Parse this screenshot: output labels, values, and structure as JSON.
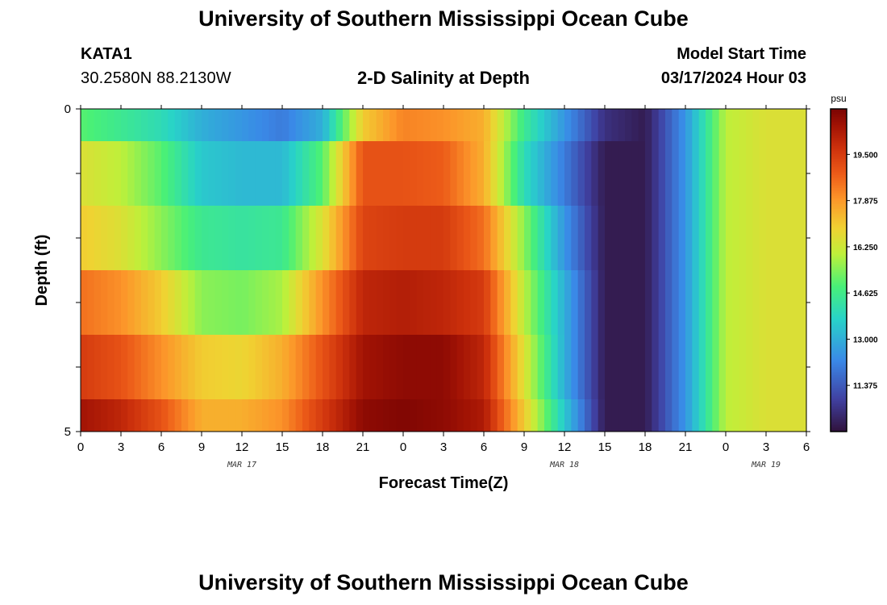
{
  "header": {
    "title": "University of Southern Mississippi Ocean Cube",
    "station": "KATA1",
    "coords": "30.2580N  88.2130W",
    "subtitle": "2-D Salinity at Depth",
    "model_label": "Model Start Time",
    "model_value": "03/17/2024 Hour 03"
  },
  "footer": {
    "title": "University of Southern Mississippi Ocean Cube"
  },
  "chart_data": {
    "type": "heatmap",
    "xlabel": "Forecast Time(Z)",
    "ylabel": "Depth (ft)",
    "x_tick_labels": [
      "0",
      "3",
      "6",
      "9",
      "12",
      "15",
      "18",
      "21",
      "0",
      "3",
      "6",
      "9",
      "12",
      "15",
      "18",
      "21",
      "0",
      "3",
      "6"
    ],
    "x_range_hours": [
      0,
      54
    ],
    "date_labels": [
      {
        "label": "MAR 17",
        "hour": 12
      },
      {
        "label": "MAR 18",
        "hour": 36
      },
      {
        "label": "MAR 19",
        "hour": 51
      }
    ],
    "y_tick_labels": [
      "0",
      "5"
    ],
    "ylim": [
      0,
      5
    ],
    "colorbar": {
      "unit": "psu",
      "tick_labels": [
        "19.500",
        "17.875",
        "16.250",
        "14.625",
        "13.000",
        "11.375"
      ],
      "range": [
        9.75,
        21.1
      ]
    },
    "depth_layers": [
      {
        "depth_range": [
          0,
          0.5
        ],
        "time_hours": [
          0,
          3,
          6,
          9,
          12,
          15,
          18,
          21,
          24,
          27,
          30,
          33,
          36,
          39,
          42,
          45,
          48,
          51,
          54
        ],
        "values": [
          15.0,
          14.5,
          14.0,
          13.0,
          12.5,
          12.0,
          13.0,
          17.0,
          18.2,
          18.0,
          17.5,
          14.5,
          12.5,
          10.5,
          10.0,
          12.5,
          16.0,
          16.5,
          16.5
        ]
      },
      {
        "depth_range": [
          0.5,
          1.5
        ],
        "time_hours": [
          0,
          3,
          6,
          9,
          12,
          15,
          18,
          21,
          24,
          27,
          30,
          33,
          36,
          39,
          42,
          45,
          48,
          51,
          54
        ],
        "values": [
          16.5,
          16.0,
          15.0,
          13.5,
          13.2,
          13.2,
          15.0,
          19.0,
          19.0,
          18.8,
          17.5,
          14.0,
          12.0,
          10.0,
          10.0,
          12.5,
          16.0,
          16.5,
          16.5
        ]
      },
      {
        "depth_range": [
          1.5,
          2.5
        ],
        "time_hours": [
          0,
          3,
          6,
          9,
          12,
          15,
          18,
          21,
          24,
          27,
          30,
          33,
          36,
          39,
          42,
          45,
          48,
          51,
          54
        ],
        "values": [
          17.0,
          16.5,
          15.5,
          14.5,
          14.3,
          14.5,
          16.5,
          19.3,
          19.5,
          19.5,
          18.5,
          15.5,
          12.5,
          10.0,
          10.0,
          12.5,
          16.0,
          16.5,
          16.5
        ]
      },
      {
        "depth_range": [
          2.5,
          3.5
        ],
        "time_hours": [
          0,
          3,
          6,
          9,
          12,
          15,
          18,
          21,
          24,
          27,
          30,
          33,
          36,
          39,
          42,
          45,
          48,
          51,
          54
        ],
        "values": [
          18.5,
          18.0,
          17.0,
          15.5,
          15.3,
          15.8,
          18.0,
          20.0,
          20.2,
          20.0,
          19.5,
          16.0,
          13.0,
          10.0,
          10.0,
          12.5,
          16.0,
          16.5,
          16.5
        ]
      },
      {
        "depth_range": [
          3.5,
          4.5
        ],
        "time_hours": [
          0,
          3,
          6,
          9,
          12,
          15,
          18,
          21,
          24,
          27,
          30,
          33,
          36,
          39,
          42,
          45,
          48,
          51,
          54
        ],
        "values": [
          19.5,
          19.0,
          18.0,
          17.0,
          16.8,
          17.5,
          19.0,
          20.5,
          20.8,
          20.8,
          20.0,
          16.5,
          13.0,
          10.0,
          10.0,
          12.5,
          16.0,
          16.5,
          16.5
        ]
      },
      {
        "depth_range": [
          4.5,
          5.0
        ],
        "time_hours": [
          0,
          3,
          6,
          9,
          12,
          15,
          18,
          21,
          24,
          27,
          30,
          33,
          36,
          39,
          42,
          45,
          48,
          51,
          54
        ],
        "values": [
          20.5,
          20.0,
          19.0,
          17.5,
          17.5,
          18.0,
          19.5,
          20.8,
          21.0,
          20.8,
          20.3,
          17.0,
          13.5,
          10.0,
          10.0,
          12.5,
          16.0,
          16.5,
          16.5
        ]
      }
    ]
  }
}
